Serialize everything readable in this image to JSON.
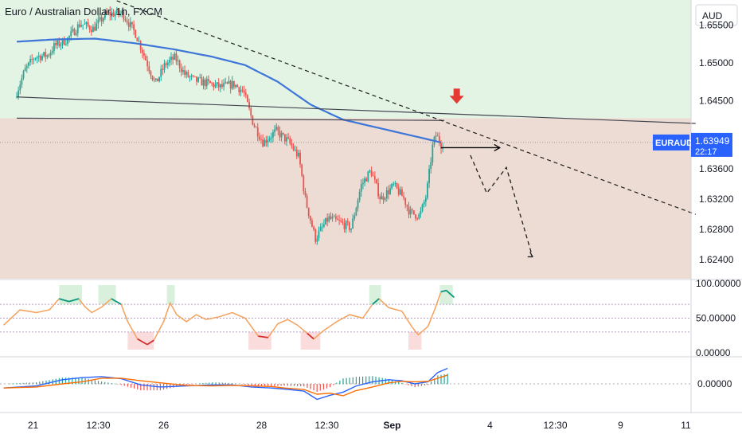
{
  "symbol_title": "Euro / Australian Dollar, 1h, FXCM",
  "currency": "AUD",
  "colors": {
    "up_zone": "#e3f4e4",
    "down_zone": "#eddcd3",
    "candle_up": "#26a69a",
    "candle_down": "#ef5350",
    "ma_line": "#3d75d8",
    "resistance_line": "#434651",
    "trend_dash": "#1e1e1e",
    "arrow": "#e53935",
    "price_tag": "#2962ff"
  },
  "chart_data": [
    {
      "name": "price",
      "type": "candlestick",
      "y_ticks": [
        "1.65500",
        "1.65000",
        "1.64500",
        "1.63600",
        "1.63200",
        "1.62800",
        "1.62400"
      ],
      "ylim": [
        1.6215,
        1.6583
      ],
      "last_price": {
        "symbol": "EURAUD",
        "value": "1.63949",
        "countdown": "22:17"
      },
      "close_path_days": [
        [
          0,
          1.6455
        ],
        [
          0.15,
          1.649
        ],
        [
          0.3,
          1.6508
        ],
        [
          0.5,
          1.651
        ],
        [
          0.6,
          1.6522
        ],
        [
          0.8,
          1.6531
        ],
        [
          1.0,
          1.6552
        ],
        [
          1.2,
          1.6545
        ],
        [
          1.4,
          1.6565
        ],
        [
          1.65,
          1.6565
        ],
        [
          1.85,
          1.6538
        ],
        [
          2.0,
          1.6505
        ],
        [
          2.15,
          1.6472
        ],
        [
          2.3,
          1.6498
        ],
        [
          2.45,
          1.6507
        ],
        [
          2.6,
          1.6485
        ],
        [
          2.75,
          1.6477
        ],
        [
          3.0,
          1.6472
        ],
        [
          3.15,
          1.6468
        ],
        [
          3.35,
          1.6472
        ],
        [
          3.5,
          1.6462
        ],
        [
          3.65,
          1.642
        ],
        [
          3.8,
          1.6395
        ],
        [
          4.0,
          1.641
        ],
        [
          4.2,
          1.6395
        ],
        [
          4.35,
          1.6375
        ],
        [
          4.45,
          1.6318
        ],
        [
          4.6,
          1.6268
        ],
        [
          4.8,
          1.6295
        ],
        [
          4.95,
          1.629
        ],
        [
          5.15,
          1.6282
        ],
        [
          5.3,
          1.6338
        ],
        [
          5.45,
          1.6358
        ],
        [
          5.6,
          1.632
        ],
        [
          5.8,
          1.6338
        ],
        [
          5.95,
          1.6322
        ],
        [
          6.05,
          1.6302
        ],
        [
          6.2,
          1.6298
        ],
        [
          6.3,
          1.6325
        ],
        [
          6.4,
          1.6392
        ],
        [
          6.45,
          1.6405
        ],
        [
          6.55,
          1.6388
        ]
      ],
      "ma_path_days": [
        [
          0,
          1.6528
        ],
        [
          0.6,
          1.6531
        ],
        [
          1.2,
          1.6532
        ],
        [
          1.8,
          1.6526
        ],
        [
          2.4,
          1.6518
        ],
        [
          3.0,
          1.6508
        ],
        [
          3.5,
          1.6497
        ],
        [
          4.0,
          1.6475
        ],
        [
          4.5,
          1.6445
        ],
        [
          5.0,
          1.6425
        ],
        [
          5.5,
          1.6415
        ],
        [
          6.0,
          1.6405
        ],
        [
          6.5,
          1.6395
        ]
      ],
      "resistance_line": [
        [
          0,
          1.6455
        ],
        [
          10.4,
          1.642
        ]
      ],
      "support_line": [
        [
          0,
          1.6427
        ],
        [
          6.55,
          1.6424
        ]
      ],
      "downtrend_line": [
        [
          0.4,
          1.6618
        ],
        [
          10.4,
          1.63
        ]
      ],
      "projection_path": [
        [
          6.95,
          1.6378
        ],
        [
          7.2,
          1.6328
        ],
        [
          7.5,
          1.6362
        ],
        [
          7.9,
          1.6244
        ]
      ],
      "projection_arrow": [
        [
          6.5,
          1.6388
        ],
        [
          7.4,
          1.6388
        ]
      ],
      "red_arrow": [
        6.74,
        1.6445
      ]
    },
    {
      "name": "oscillator",
      "type": "line",
      "y_ticks": [
        "100.00000",
        "50.00000",
        "0.00000"
      ],
      "ylim": [
        0,
        100
      ],
      "levels": [
        70,
        50,
        30
      ]
    },
    {
      "name": "macd",
      "type": "line",
      "y_ticks": [
        "0.00000"
      ],
      "ylim": [
        -1,
        1
      ]
    }
  ],
  "x_axis": {
    "labels": [
      "21",
      "12:30",
      "26",
      "28",
      "12:30",
      "Sep",
      "4",
      "12:30",
      "9",
      "11"
    ],
    "label_days": [
      0.25,
      1.25,
      2.25,
      3.75,
      4.75,
      5.75,
      7.25,
      8.25,
      9.25,
      10.25
    ]
  }
}
